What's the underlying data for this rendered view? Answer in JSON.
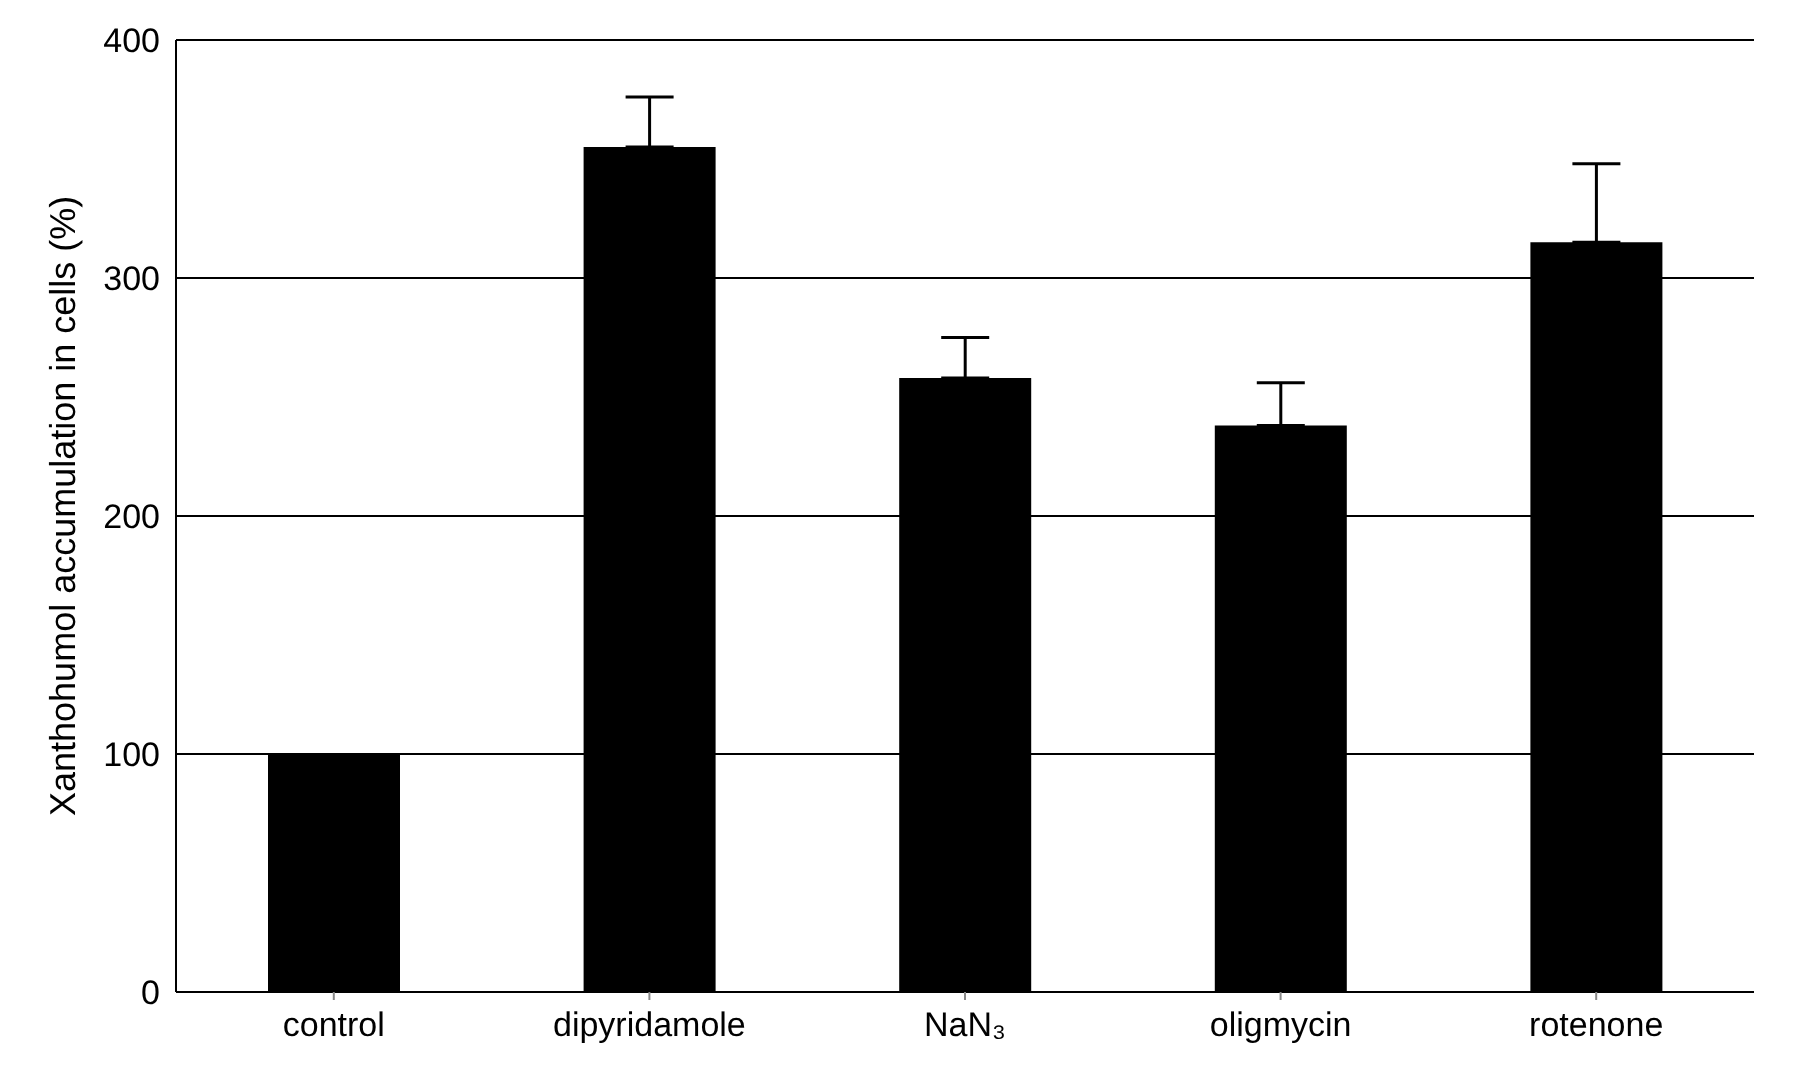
{
  "chart_data": {
    "type": "bar",
    "ylabel": "Xanthohumol accumulation in cells (%)",
    "categories": [
      "control",
      "dipyridamole",
      "NaN₃",
      "oligmycin",
      "rotenone"
    ],
    "values": [
      100,
      355,
      258,
      238,
      315
    ],
    "errors": [
      null,
      [
        355,
        376
      ],
      [
        258,
        275
      ],
      [
        238,
        256
      ],
      [
        315,
        348
      ]
    ],
    "color": "#000000",
    "ylim": [
      0,
      400
    ],
    "yticks": [
      0,
      100,
      200,
      300,
      400
    ],
    "grid": "y"
  }
}
